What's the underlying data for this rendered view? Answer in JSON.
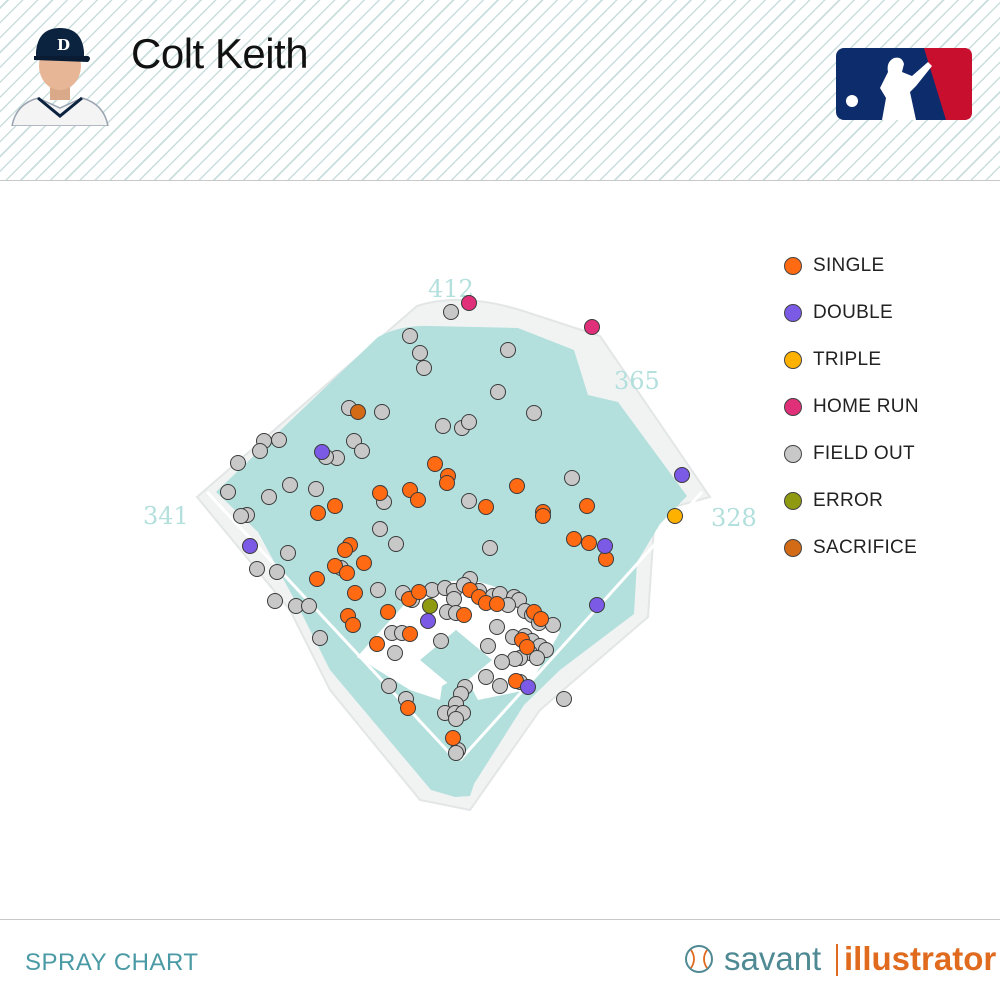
{
  "header": {
    "player_name": "Colt Keith",
    "avatar_icon": "player-headshot-icon",
    "logo_icon": "mlb-logo-icon",
    "colors": {
      "mlb_blue": "#0d2c6c",
      "mlb_red": "#c8102e",
      "stripe": "#c9dedd"
    }
  },
  "footer": {
    "chart_label": "SPRAY CHART",
    "brand_savant": "savant",
    "brand_illustrator": "illustrator",
    "brand_icon": "baseball-icon"
  },
  "chart_data": {
    "type": "scatter",
    "title": "",
    "distances": {
      "left_field": "341",
      "center_field": "412",
      "right_center": "365",
      "right_field": "328"
    },
    "field_color": "#b3e0dd",
    "legend": [
      {
        "key": "single",
        "label": "SINGLE",
        "color": "#ff6a13"
      },
      {
        "key": "double",
        "label": "DOUBLE",
        "color": "#7b5ae6"
      },
      {
        "key": "triple",
        "label": "TRIPLE",
        "color": "#ffb100"
      },
      {
        "key": "home_run",
        "label": "HOME RUN",
        "color": "#e0307a"
      },
      {
        "key": "field_out",
        "label": "FIELD OUT",
        "color": "#c8c8c8"
      },
      {
        "key": "error",
        "label": "ERROR",
        "color": "#8f9a10"
      },
      {
        "key": "sacrifice",
        "label": "SACRIFICE",
        "color": "#d36a16"
      }
    ],
    "series": [
      {
        "key": "single",
        "points": [
          [
            435,
            464
          ],
          [
            448,
            476
          ],
          [
            447,
            483
          ],
          [
            410,
            490
          ],
          [
            418,
            500
          ],
          [
            380,
            493
          ],
          [
            486,
            507
          ],
          [
            517,
            486
          ],
          [
            587,
            506
          ],
          [
            543,
            512
          ],
          [
            543,
            516
          ],
          [
            335,
            506
          ],
          [
            318,
            513
          ],
          [
            350,
            545
          ],
          [
            345,
            550
          ],
          [
            364,
            563
          ],
          [
            335,
            566
          ],
          [
            347,
            573
          ],
          [
            317,
            579
          ],
          [
            355,
            593
          ],
          [
            574,
            539
          ],
          [
            589,
            543
          ],
          [
            606,
            559
          ],
          [
            348,
            616
          ],
          [
            353,
            625
          ],
          [
            388,
            612
          ],
          [
            409,
            599
          ],
          [
            410,
            634
          ],
          [
            377,
            644
          ],
          [
            419,
            592
          ],
          [
            470,
            590
          ],
          [
            479,
            597
          ],
          [
            486,
            603
          ],
          [
            497,
            604
          ],
          [
            464,
            615
          ],
          [
            534,
            612
          ],
          [
            541,
            619
          ],
          [
            522,
            640
          ],
          [
            527,
            647
          ],
          [
            408,
            708
          ],
          [
            516,
            681
          ],
          [
            453,
            738
          ]
        ]
      },
      {
        "key": "double",
        "points": [
          [
            322,
            452
          ],
          [
            250,
            546
          ],
          [
            605,
            546
          ],
          [
            597,
            605
          ],
          [
            428,
            621
          ],
          [
            528,
            687
          ],
          [
            682,
            475
          ]
        ]
      },
      {
        "key": "triple",
        "points": [
          [
            675,
            516
          ]
        ]
      },
      {
        "key": "home_run",
        "points": [
          [
            469,
            303
          ],
          [
            592,
            327
          ]
        ]
      },
      {
        "key": "error",
        "points": [
          [
            430,
            606
          ]
        ]
      },
      {
        "key": "sacrifice",
        "points": [
          [
            358,
            412
          ]
        ]
      },
      {
        "key": "field_out",
        "points": [
          [
            451,
            312
          ],
          [
            410,
            336
          ],
          [
            420,
            353
          ],
          [
            424,
            368
          ],
          [
            508,
            350
          ],
          [
            498,
            392
          ],
          [
            349,
            408
          ],
          [
            382,
            412
          ],
          [
            534,
            413
          ],
          [
            443,
            426
          ],
          [
            462,
            428
          ],
          [
            469,
            422
          ],
          [
            264,
            441
          ],
          [
            279,
            440
          ],
          [
            260,
            451
          ],
          [
            354,
            441
          ],
          [
            362,
            451
          ],
          [
            337,
            458
          ],
          [
            326,
            457
          ],
          [
            238,
            463
          ],
          [
            572,
            478
          ],
          [
            228,
            492
          ],
          [
            290,
            485
          ],
          [
            316,
            489
          ],
          [
            269,
            497
          ],
          [
            384,
            502
          ],
          [
            469,
            501
          ],
          [
            247,
            515
          ],
          [
            241,
            516
          ],
          [
            380,
            529
          ],
          [
            396,
            544
          ],
          [
            490,
            548
          ],
          [
            288,
            553
          ],
          [
            257,
            569
          ],
          [
            277,
            572
          ],
          [
            341,
            568
          ],
          [
            378,
            590
          ],
          [
            403,
            593
          ],
          [
            412,
            600
          ],
          [
            432,
            590
          ],
          [
            445,
            588
          ],
          [
            454,
            591
          ],
          [
            470,
            579
          ],
          [
            464,
            585
          ],
          [
            479,
            591
          ],
          [
            493,
            596
          ],
          [
            454,
            599
          ],
          [
            500,
            594
          ],
          [
            514,
            597
          ],
          [
            519,
            600
          ],
          [
            508,
            605
          ],
          [
            447,
            612
          ],
          [
            456,
            613
          ],
          [
            525,
            611
          ],
          [
            532,
            615
          ],
          [
            539,
            623
          ],
          [
            553,
            625
          ],
          [
            275,
            601
          ],
          [
            296,
            606
          ],
          [
            309,
            606
          ],
          [
            392,
            633
          ],
          [
            402,
            633
          ],
          [
            441,
            641
          ],
          [
            497,
            627
          ],
          [
            513,
            637
          ],
          [
            525,
            636
          ],
          [
            532,
            641
          ],
          [
            540,
            646
          ],
          [
            546,
            650
          ],
          [
            530,
            653
          ],
          [
            520,
            658
          ],
          [
            515,
            659
          ],
          [
            537,
            658
          ],
          [
            320,
            638
          ],
          [
            395,
            653
          ],
          [
            488,
            646
          ],
          [
            502,
            662
          ],
          [
            486,
            677
          ],
          [
            500,
            686
          ],
          [
            520,
            682
          ],
          [
            389,
            686
          ],
          [
            406,
            699
          ],
          [
            465,
            687
          ],
          [
            461,
            694
          ],
          [
            456,
            704
          ],
          [
            445,
            713
          ],
          [
            455,
            713
          ],
          [
            463,
            713
          ],
          [
            456,
            719
          ],
          [
            564,
            699
          ],
          [
            458,
            750
          ],
          [
            456,
            753
          ]
        ]
      }
    ]
  }
}
